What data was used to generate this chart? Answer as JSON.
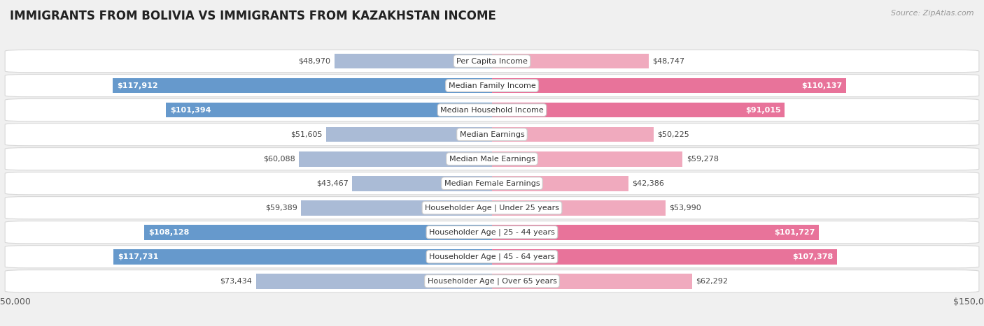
{
  "title": "IMMIGRANTS FROM BOLIVIA VS IMMIGRANTS FROM KAZAKHSTAN INCOME",
  "source": "Source: ZipAtlas.com",
  "categories": [
    "Per Capita Income",
    "Median Family Income",
    "Median Household Income",
    "Median Earnings",
    "Median Male Earnings",
    "Median Female Earnings",
    "Householder Age | Under 25 years",
    "Householder Age | 25 - 44 years",
    "Householder Age | 45 - 64 years",
    "Householder Age | Over 65 years"
  ],
  "bolivia_values": [
    48970,
    117912,
    101394,
    51605,
    60088,
    43467,
    59389,
    108128,
    117731,
    73434
  ],
  "kazakhstan_values": [
    48747,
    110137,
    91015,
    50225,
    59278,
    42386,
    53990,
    101727,
    107378,
    62292
  ],
  "bolivia_color_large": "#6699cc",
  "bolivia_color_small": "#aabbd6",
  "kazakhstan_color_large": "#e8739a",
  "kazakhstan_color_small": "#f0aabe",
  "bolivia_label": "Immigrants from Bolivia",
  "kazakhstan_label": "Immigrants from Kazakhstan",
  "max_value": 150000,
  "bar_height": 0.62,
  "background_color": "#f0f0f0",
  "row_bg_color": "#ffffff",
  "row_edge_color": "#d8d8d8",
  "label_threshold": 90000,
  "title_fontsize": 12,
  "source_fontsize": 8,
  "axis_label_fontsize": 9,
  "bar_label_fontsize": 8,
  "category_fontsize": 8,
  "legend_fontsize": 9
}
